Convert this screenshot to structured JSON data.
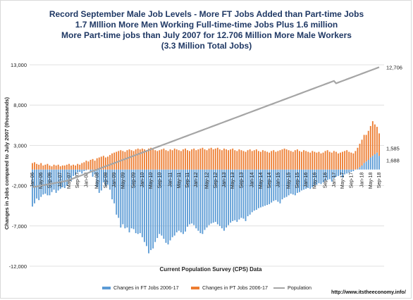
{
  "title_lines": [
    "Record September Male Job Levels - More FT Jobs Added than Part-time Jobs",
    "1.7 MIllion More Men Working Full-time-time Jobs Plus 1.6 million",
    "More Part-time jobs than July 2007 for 12.706 Million More Male Workers",
    "(3.3 Million Total Jobs)"
  ],
  "source_url": "http://www.itstheeconomy.info/",
  "colors": {
    "ft": "#5b9bd5",
    "pt": "#ed7d31",
    "population": "#a5a5a5",
    "title": "#1f3864",
    "grid": "#d9d9d9"
  },
  "chart_data": {
    "type": "bar",
    "stacked_bar_with_line": true,
    "xlabel": "Current Population Survey (CPS) Data",
    "ylabel": "Changes in Jobs compared to July 2007 (thousands)",
    "ylim": [
      -12000,
      13000
    ],
    "yticks": [
      13000,
      8000,
      3000,
      -2000,
      -7000,
      -12000
    ],
    "ytick_labels": [
      "13,000",
      "8,000",
      "3,000",
      "-2,000",
      "-7,000",
      "-12,000"
    ],
    "grid": true,
    "legend_position": "bottom",
    "x_tick_labels": [
      "Jan-06",
      "May-06",
      "Sep-06",
      "Jan-07",
      "May-07",
      "Sep-07",
      "Jan-08",
      "May-08",
      "Sep-08",
      "Jan-09",
      "May-09",
      "Sep-09",
      "Jan-10",
      "May-10",
      "Sep-10",
      "Jan-11",
      "May-11",
      "Sep-11",
      "Jan-12",
      "May-12",
      "Sep-12",
      "Jan-13",
      "May-13",
      "Sep-13",
      "Jan-14",
      "May-14",
      "Sep-14",
      "Jan-15",
      "May-15",
      "Sep-15",
      "Jan-16",
      "May-16",
      "Sep-16",
      "Jan-17",
      "May-17",
      "Sep-17",
      "Jan-18",
      "May-18",
      "Sep-18"
    ],
    "series": [
      {
        "name": "Changes in FT Jobs 2006-17",
        "values": [
          -4600,
          -4200,
          -3600,
          -3800,
          -3400,
          -3100,
          -3000,
          -3200,
          -3200,
          -2800,
          -2500,
          -2900,
          -2600,
          -2400,
          -2200,
          -2300,
          -2000,
          -1500,
          -1400,
          -800,
          -700,
          -400,
          -300,
          -500,
          -200,
          -100,
          0,
          -300,
          -900,
          -600,
          -2200,
          -2900,
          -2600,
          -1600,
          -2100,
          -1900,
          -2500,
          -3700,
          -4200,
          -5600,
          -6000,
          -7200,
          -6800,
          -7300,
          -7200,
          -7800,
          -7300,
          -7400,
          -7900,
          -8000,
          -7900,
          -8400,
          -9000,
          -9500,
          -10400,
          -10000,
          -9800,
          -9000,
          -8500,
          -8000,
          -8200,
          -8600,
          -9100,
          -9300,
          -8800,
          -8400,
          -8200,
          -7800,
          -7600,
          -7800,
          -8000,
          -7700,
          -7100,
          -6800,
          -6700,
          -6900,
          -7300,
          -7600,
          -7900,
          -8000,
          -7500,
          -7200,
          -6900,
          -6700,
          -6600,
          -6500,
          -6800,
          -7000,
          -7300,
          -7600,
          -7200,
          -6900,
          -6600,
          -6400,
          -6300,
          -6500,
          -6200,
          -6000,
          -6100,
          -6400,
          -5800,
          -5600,
          -5300,
          -5100,
          -5000,
          -4800,
          -4700,
          -4600,
          -4500,
          -4400,
          -4300,
          -4100,
          -3900,
          -3800,
          -4000,
          -4200,
          -3700,
          -3500,
          -3400,
          -3200,
          -3000,
          -3100,
          -3200,
          -2900,
          -2800,
          -2600,
          -2500,
          -2400,
          -2300,
          -2400,
          -2200,
          -2000,
          -1900,
          -1700,
          -1800,
          -1600,
          -1400,
          -1300,
          -1200,
          -1500,
          -1100,
          -900,
          -800,
          -700,
          -1000,
          -600,
          -500,
          -400,
          -300,
          -200,
          0,
          100,
          300,
          500,
          800,
          1000,
          1200,
          1500,
          1700,
          1900,
          2100,
          1688
        ],
        "end_label": "1,688"
      },
      {
        "name": "Changes in PT Jobs 2006-17",
        "values": [
          800,
          900,
          700,
          600,
          800,
          500,
          600,
          700,
          500,
          400,
          600,
          500,
          600,
          400,
          500,
          500,
          600,
          700,
          500,
          600,
          500,
          700,
          600,
          800,
          900,
          1100,
          1000,
          1200,
          1300,
          1100,
          1400,
          1500,
          1600,
          1700,
          1500,
          1600,
          1800,
          2000,
          2100,
          2200,
          2300,
          2400,
          2300,
          2200,
          2400,
          2500,
          2400,
          2300,
          2500,
          2600,
          2500,
          2600,
          2500,
          2400,
          2600,
          2700,
          2500,
          2400,
          2300,
          2400,
          2500,
          2600,
          2400,
          2300,
          2500,
          2400,
          2600,
          2500,
          2400,
          2300,
          2500,
          2600,
          2400,
          2300,
          2500,
          2600,
          2400,
          2500,
          2600,
          2700,
          2500,
          2400,
          2600,
          2700,
          2500,
          2600,
          2700,
          2500,
          2400,
          2600,
          2500,
          2400,
          2500,
          2600,
          2400,
          2300,
          2500,
          2400,
          2300,
          2200,
          2400,
          2500,
          2300,
          2400,
          2500,
          2300,
          2200,
          2400,
          2300,
          2200,
          2100,
          2300,
          2400,
          2200,
          2300,
          2400,
          2500,
          2600,
          2500,
          2400,
          2300,
          2200,
          2400,
          2500,
          2300,
          2200,
          2400,
          2300,
          2200,
          2100,
          2300,
          2200,
          2100,
          2200,
          2000,
          2100,
          2300,
          2400,
          2200,
          2100,
          2300,
          2200,
          2000,
          2100,
          2200,
          2300,
          2400,
          2200,
          2100,
          2000,
          2300,
          2600,
          2900,
          3200,
          3500,
          3300,
          3600,
          3900,
          4300,
          3700,
          3200,
          2800,
          1585
        ],
        "end_label": "1,585"
      },
      {
        "name": "Population",
        "values": [
          -2200,
          -2150,
          -2100,
          -2050,
          -2000,
          -1950,
          -1900,
          -1850,
          -1800,
          -1750,
          -1700,
          -1650,
          -1600,
          -1550,
          -1500,
          -1450,
          -1400,
          -1300,
          -1200,
          -1100,
          -1000,
          -900,
          -800,
          -700,
          -600,
          -500,
          -400,
          -300,
          -200,
          -100,
          0,
          100,
          200,
          300,
          400,
          500,
          600,
          700,
          800,
          900,
          1000,
          1100,
          1200,
          1300,
          1400,
          1500,
          1600,
          1700,
          1800,
          1900,
          2000,
          2100,
          2200,
          2300,
          2400,
          2500,
          2600,
          2700,
          2800,
          2900,
          3000,
          3100,
          3200,
          3300,
          3400,
          3500,
          3600,
          3700,
          3800,
          3900,
          4000,
          4100,
          4200,
          4300,
          4400,
          4500,
          4600,
          4700,
          4800,
          4900,
          5000,
          5100,
          5200,
          5300,
          5400,
          5500,
          5600,
          5700,
          5800,
          5900,
          6000,
          6100,
          6200,
          6300,
          6400,
          6500,
          6600,
          6700,
          6800,
          6900,
          7000,
          7100,
          7200,
          7300,
          7400,
          7500,
          7600,
          7700,
          7800,
          7900,
          8000,
          8100,
          8200,
          8300,
          8400,
          8500,
          8600,
          8700,
          8800,
          8900,
          9000,
          9100,
          9200,
          9300,
          9400,
          9500,
          9600,
          9700,
          9800,
          9900,
          10000,
          10100,
          10200,
          10300,
          10400,
          10500,
          10600,
          10700,
          10800,
          10900,
          11000,
          10700,
          10800,
          10900,
          11000,
          11100,
          11200,
          11300,
          11400,
          11500,
          11600,
          11700,
          11800,
          11900,
          12000,
          12100,
          12200,
          12300,
          12400,
          12500,
          12600,
          12706
        ],
        "end_label": "12,706"
      }
    ]
  }
}
